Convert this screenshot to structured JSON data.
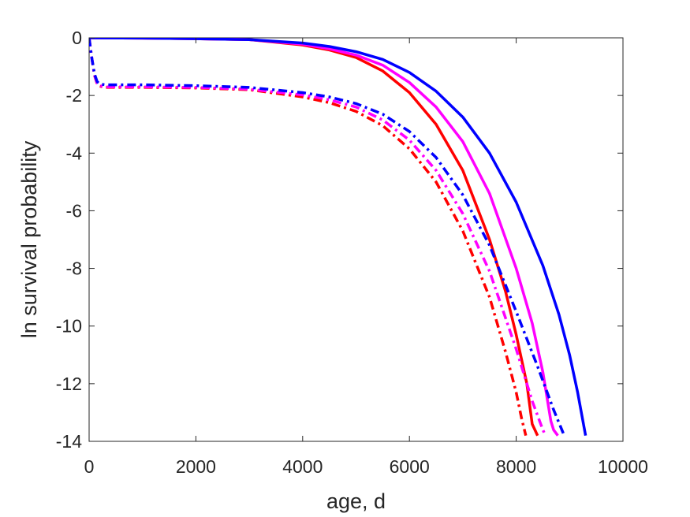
{
  "chart_data": {
    "type": "line",
    "title": "",
    "xlabel": "age, d",
    "ylabel": "ln survival probability",
    "xlim": [
      0,
      10000
    ],
    "ylim": [
      -14,
      0
    ],
    "xticks": [
      0,
      2000,
      4000,
      6000,
      8000,
      10000
    ],
    "yticks": [
      0,
      -2,
      -4,
      -6,
      -8,
      -10,
      -12,
      -14
    ],
    "xtick_labels": [
      "0",
      "2000",
      "4000",
      "6000",
      "8000",
      "10000"
    ],
    "ytick_labels": [
      "0",
      "-2",
      "-4",
      "-6",
      "-8",
      "-10",
      "-12",
      "-14"
    ],
    "grid": false,
    "legend": "none",
    "series": [
      {
        "color": "#ff0000",
        "style": "solid",
        "x": [
          0,
          1000,
          2000,
          3000,
          4000,
          4500,
          5000,
          5500,
          6000,
          6500,
          7000,
          7500,
          7800,
          8000,
          8200,
          8300,
          8350,
          8400
        ],
        "y": [
          0,
          -0.01,
          -0.03,
          -0.06,
          -0.25,
          -0.42,
          -0.68,
          -1.15,
          -1.9,
          -3.0,
          -4.6,
          -7.0,
          -8.8,
          -10.3,
          -12.0,
          -13.4,
          -13.6,
          -13.8
        ]
      },
      {
        "color": "#ff00ff",
        "style": "solid",
        "x": [
          0,
          1000,
          2000,
          3000,
          4000,
          4500,
          5000,
          5500,
          6000,
          6500,
          7000,
          7500,
          8000,
          8300,
          8500,
          8650,
          8700,
          8780
        ],
        "y": [
          0,
          -0.01,
          -0.03,
          -0.06,
          -0.22,
          -0.38,
          -0.6,
          -0.95,
          -1.55,
          -2.4,
          -3.6,
          -5.4,
          -8.0,
          -9.9,
          -11.6,
          -13.3,
          -13.6,
          -13.8
        ]
      },
      {
        "color": "#0000ff",
        "style": "solid",
        "x": [
          0,
          1000,
          2000,
          3000,
          4000,
          4500,
          5000,
          5500,
          6000,
          6500,
          7000,
          7500,
          8000,
          8500,
          8800,
          9000,
          9150,
          9300
        ],
        "y": [
          0,
          -0.01,
          -0.03,
          -0.06,
          -0.18,
          -0.3,
          -0.48,
          -0.75,
          -1.2,
          -1.85,
          -2.75,
          -4.0,
          -5.7,
          -7.9,
          -9.6,
          -11.0,
          -12.3,
          -13.8
        ]
      },
      {
        "color": "#ff0000",
        "style": "dashdot",
        "x": [
          0,
          50,
          100,
          150,
          200,
          300,
          1000,
          2000,
          3000,
          4000,
          4500,
          5000,
          5500,
          6000,
          6500,
          7000,
          7500,
          7800,
          8000,
          8100,
          8180
        ],
        "y": [
          0,
          -0.7,
          -1.3,
          -1.6,
          -1.68,
          -1.72,
          -1.72,
          -1.74,
          -1.8,
          -2.05,
          -2.25,
          -2.55,
          -3.05,
          -3.85,
          -5.0,
          -6.7,
          -9.0,
          -10.9,
          -12.3,
          -13.2,
          -13.8
        ]
      },
      {
        "color": "#ff00ff",
        "style": "dashdot",
        "x": [
          0,
          50,
          100,
          150,
          200,
          300,
          1000,
          2000,
          3000,
          4000,
          4500,
          5000,
          5500,
          6000,
          6500,
          7000,
          7500,
          8000,
          8300,
          8500,
          8550
        ],
        "y": [
          0,
          -0.7,
          -1.3,
          -1.58,
          -1.66,
          -1.7,
          -1.7,
          -1.72,
          -1.78,
          -1.98,
          -2.15,
          -2.4,
          -2.85,
          -3.55,
          -4.6,
          -6.1,
          -8.1,
          -10.8,
          -12.6,
          -13.6,
          -13.8
        ]
      },
      {
        "color": "#0000ff",
        "style": "dashdot",
        "x": [
          0,
          50,
          100,
          150,
          200,
          300,
          1000,
          2000,
          3000,
          4000,
          4500,
          5000,
          5500,
          6000,
          6500,
          7000,
          7500,
          8000,
          8400,
          8700,
          8900
        ],
        "y": [
          0,
          -0.7,
          -1.25,
          -1.52,
          -1.6,
          -1.63,
          -1.63,
          -1.66,
          -1.72,
          -1.9,
          -2.05,
          -2.28,
          -2.65,
          -3.25,
          -4.15,
          -5.45,
          -7.2,
          -9.5,
          -11.4,
          -12.9,
          -13.8
        ]
      }
    ]
  }
}
